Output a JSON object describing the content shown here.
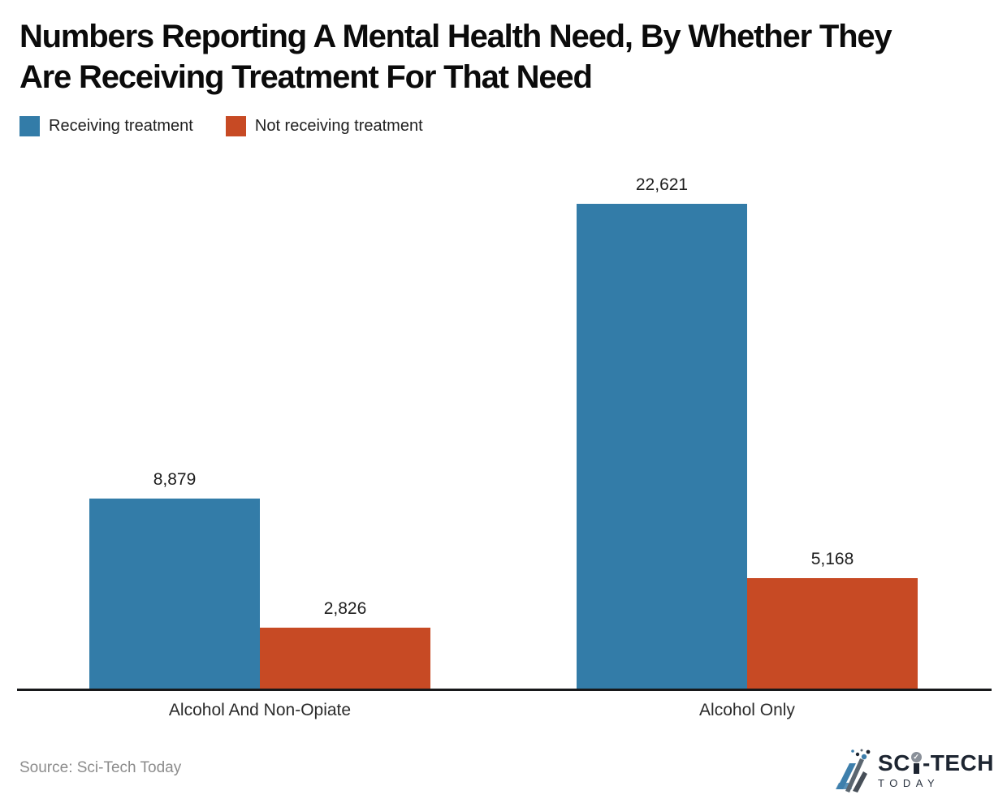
{
  "title": {
    "line1": "Numbers Reporting A Mental Health Need, By Whether They",
    "line2": "Are Receiving Treatment For That Need"
  },
  "chart_data": {
    "type": "bar",
    "title": "Numbers Reporting A Mental Health Need, By Whether They Are Receiving Treatment For That Need",
    "categories": [
      "Alcohol And Non-Opiate",
      "Alcohol Only"
    ],
    "series": [
      {
        "name": "Receiving treatment",
        "color": "#337CA8",
        "values": [
          8879,
          22621
        ]
      },
      {
        "name": "Not receiving treatment",
        "color": "#C74A24",
        "values": [
          2826,
          5168
        ]
      }
    ],
    "value_labels": [
      "8,879",
      "22,621",
      "2,826",
      "5,168"
    ],
    "xlabel": "",
    "ylabel": "",
    "ylim": [
      0,
      24000
    ],
    "grid": false,
    "y_axis_visible": false,
    "legend_position": "top-left"
  },
  "colors": {
    "axis": "#17181A",
    "title_text": "#0B0B0B",
    "source_text": "#8C8C8C",
    "logo_dark": "#1D2531",
    "logo_blue": "#3E7FAC",
    "logo_gray": "#5B6670"
  },
  "footer": {
    "source": "Source: Sci-Tech Today",
    "logo": {
      "sci_prefix": "SC",
      "sci_suffix": "-TECH",
      "today": "TODAY",
      "check": "✓"
    }
  }
}
